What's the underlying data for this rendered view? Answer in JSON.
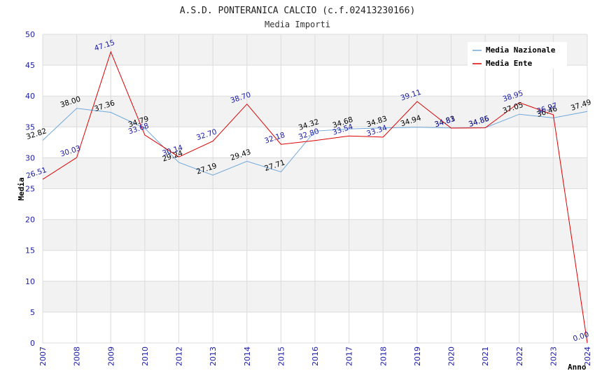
{
  "chart_data": {
    "type": "line",
    "title": "A.S.D. PONTERANICA CALCIO (c.f.02413230166)",
    "subtitle": "Media Importi",
    "xlabel": "Anno",
    "ylabel": "Media",
    "ylim": [
      0,
      50
    ],
    "yticks": [
      "0",
      "5",
      "10",
      "15",
      "20",
      "25",
      "30",
      "35",
      "40",
      "45",
      "50"
    ],
    "categories": [
      "2007",
      "2008",
      "2009",
      "2010",
      "2012",
      "2013",
      "2014",
      "2015",
      "2016",
      "2017",
      "2018",
      "2019",
      "2020",
      "2021",
      "2022",
      "2023",
      "2024"
    ],
    "grid": true,
    "legend_position": "top-right",
    "series": [
      {
        "name": "Media Nazionale",
        "color": "#6fa8dc",
        "label_color": "#000000",
        "values": [
          32.82,
          38.0,
          37.36,
          34.79,
          29.24,
          27.19,
          29.43,
          27.71,
          34.32,
          34.68,
          34.83,
          34.94,
          34.83,
          34.86,
          37.05,
          36.46,
          37.49
        ],
        "labels": [
          "32.82",
          "38.00",
          "37.36",
          "34.79",
          "29.24",
          "27.19",
          "29.43",
          "27.71",
          "34.32",
          "34.68",
          "34.83",
          "34.94",
          "34.83",
          "34.86",
          "37.05",
          "36.46",
          "37.49"
        ]
      },
      {
        "name": "Media Ente",
        "color": "#dd0000",
        "label_color": "#1a1aa6",
        "values": [
          26.51,
          30.03,
          47.15,
          33.68,
          30.14,
          32.7,
          38.7,
          32.18,
          32.8,
          33.54,
          33.34,
          39.11,
          34.81,
          34.85,
          38.95,
          36.97,
          0.0
        ],
        "labels": [
          "26.51",
          "30.03",
          "47.15",
          "33.68",
          "30.14",
          "32.70",
          "38.70",
          "32.18",
          "32.80",
          "33.54",
          "33.34",
          "39.11",
          "34.81",
          "34.85",
          "38.95",
          "36.97",
          "0.00"
        ]
      }
    ]
  }
}
